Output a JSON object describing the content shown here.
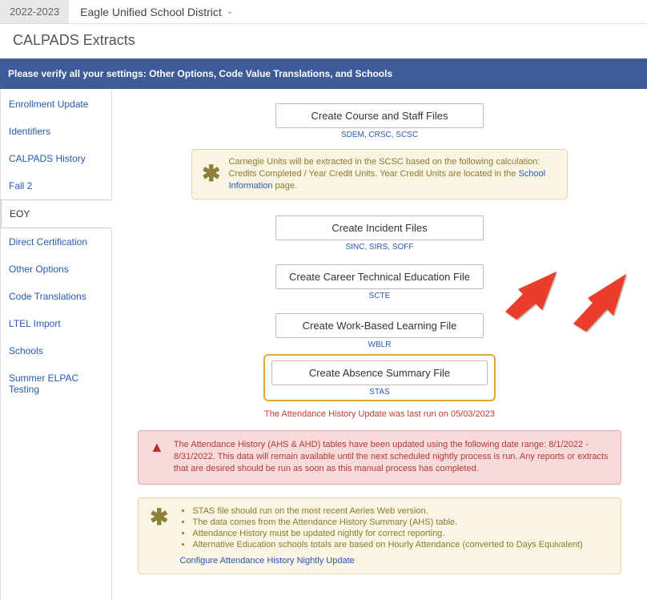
{
  "header": {
    "year": "2022-2023",
    "district": "Eagle Unified School District"
  },
  "page_title": "CALPADS Extracts",
  "banner": "Please verify all your settings: Other Options, Code Value Translations, and Schools",
  "sidebar": {
    "items": [
      "Enrollment Update",
      "Identifiers",
      "CALPADS History",
      "Fall 2",
      "EOY",
      "Direct Certification",
      "Other Options",
      "Code Translations",
      "LTEL Import",
      "Schools",
      "Summer ELPAC Testing"
    ],
    "active_index": 4
  },
  "buttons": {
    "course_staff": "Create Course and Staff Files",
    "course_staff_sub": "SDEM, CRSC, SCSC",
    "incident": "Create Incident Files",
    "incident_sub": "SINC, SIRS, SOFF",
    "cte": "Create Career Technical Education File",
    "cte_sub": "SCTE",
    "wblr": "Create Work-Based Learning File",
    "wblr_sub": "WBLR",
    "absence": "Create Absence Summary File",
    "absence_sub": "STAS"
  },
  "carnegie_note": {
    "pre": "Carnegie Units will be extracted in the SCSC based on the following calculation: Credits Completed / Year Credit Units. Year Credit Units are located in the ",
    "link": "School Information",
    "post": " page."
  },
  "status_line": "The Attendance History Update was last run on 05/03/2023",
  "warning": "The Attendance History (AHS & AHD) tables have been updated using the following date range: 8/1/2022 - 8/31/2022. This data will remain available until the next scheduled nightly process is run. Any reports or extracts that are desired should be run as soon as this manual process has completed.",
  "notes": {
    "items": [
      "STAS file should run on the most recent Aeries Web version.",
      "The data comes from the Attendance History Summary (AHS) table.",
      "Attendance History must be updated nightly for correct reporting.",
      "Alternative Education schools totals are based on Hourly Attendance (converted to Days Equivalent)"
    ],
    "link": "Configure Attendance History Nightly Update"
  },
  "colors": {
    "banner_bg": "#3d5a99",
    "link": "#2659b5",
    "highlight_border": "#e2a935",
    "warn_bg": "#f9dada",
    "note_bg": "#f9f5e2",
    "arrow": "#ea3e2c"
  }
}
